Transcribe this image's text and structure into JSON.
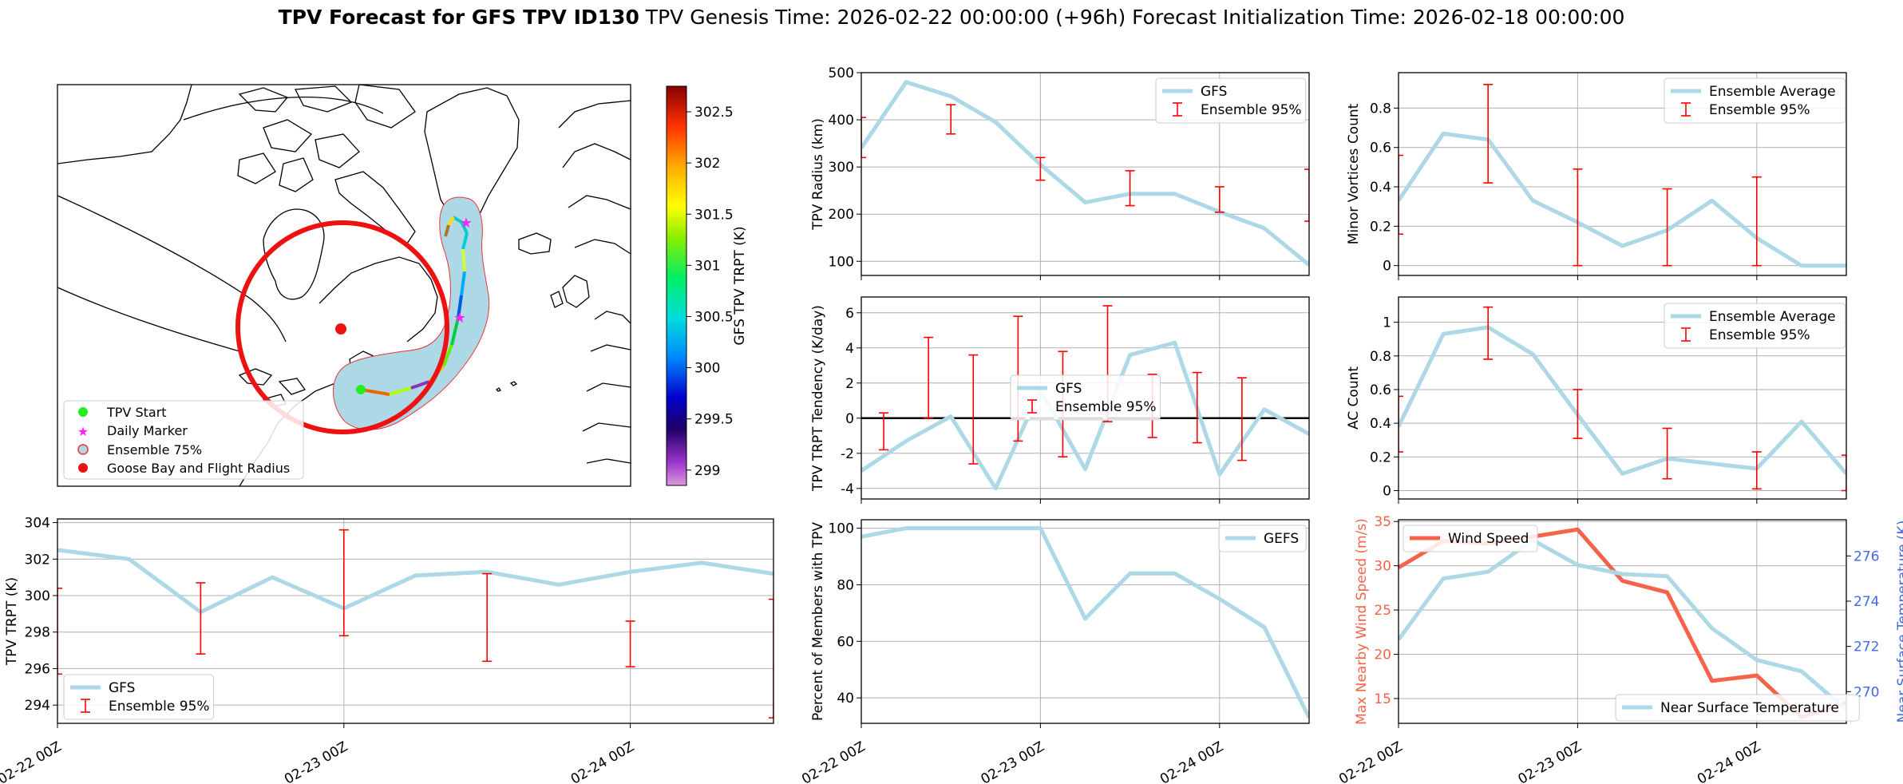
{
  "figure": {
    "title_bold": "TPV Forecast for GFS TPV ID130",
    "title_rest": "TPV Genesis Time: 2026-02-22 00:00:00 (+96h)   Forecast Initialization Time: 2026-02-18 00:00:00"
  },
  "colors": {
    "gfs_line": "#add8e6",
    "ensemble_err": "#ff0000",
    "wind": "#f4634a",
    "temp_axis": "#4169e1",
    "track_fill": "#add8e6",
    "circle": "#ee1111"
  },
  "chart_data": [
    {
      "id": "map",
      "type": "scatter",
      "colorbar": {
        "label": "GFS TPV TRPT (K)",
        "ticks": [
          302.5,
          302.0,
          301.5,
          301.0,
          300.5,
          300.0,
          299.5,
          299.0
        ],
        "range": [
          298.85,
          302.75
        ]
      },
      "legend": [
        "TPV Start",
        "Daily Marker",
        "Ensemble 75%",
        "Goose Bay and Flight Radius"
      ],
      "legend_position": "lower-left"
    },
    {
      "id": "radius",
      "type": "line",
      "ylabel": "TPV Radius (km)",
      "ylim": [
        70,
        500
      ],
      "yticks": [
        100,
        200,
        300,
        400,
        500
      ],
      "x": [
        0,
        0.25,
        0.5,
        0.75,
        1.0,
        1.25,
        1.5,
        1.75,
        2.0,
        2.25,
        2.5
      ],
      "series": [
        {
          "name": "GFS",
          "values": [
            340,
            480,
            450,
            395,
            305,
            225,
            243,
            243,
            205,
            170,
            92
          ]
        }
      ],
      "errorbars": [
        {
          "x": 0.0,
          "low": 320,
          "high": 405
        },
        {
          "x": 0.5,
          "low": 370,
          "high": 432
        },
        {
          "x": 1.0,
          "low": 272,
          "high": 320
        },
        {
          "x": 1.5,
          "low": 218,
          "high": 292
        },
        {
          "x": 2.0,
          "low": 204,
          "high": 258
        },
        {
          "x": 2.5,
          "low": 185,
          "high": 295
        }
      ],
      "legend": [
        "GFS",
        "Ensemble 95%"
      ],
      "legend_position": "top-right"
    },
    {
      "id": "minor",
      "type": "line",
      "ylabel": "Minor Vortices Count",
      "ylim": [
        -0.05,
        0.98
      ],
      "yticks": [
        0.0,
        0.2,
        0.4,
        0.6,
        0.8
      ],
      "x": [
        0,
        0.25,
        0.5,
        0.75,
        1.0,
        1.25,
        1.5,
        1.75,
        2.0,
        2.25,
        2.5
      ],
      "series": [
        {
          "name": "Ensemble Average",
          "values": [
            0.33,
            0.67,
            0.64,
            0.33,
            0.22,
            0.1,
            0.18,
            0.33,
            0.14,
            0.0,
            0.0
          ]
        }
      ],
      "errorbars": [
        {
          "x": 0.0,
          "low": 0.16,
          "high": 0.56
        },
        {
          "x": 0.5,
          "low": 0.42,
          "high": 0.92
        },
        {
          "x": 1.0,
          "low": 0.0,
          "high": 0.49
        },
        {
          "x": 1.5,
          "low": 0.0,
          "high": 0.39
        },
        {
          "x": 2.0,
          "low": 0.0,
          "high": 0.45
        }
      ],
      "legend": [
        "Ensemble Average",
        "Ensemble 95%"
      ],
      "legend_position": "top-right"
    },
    {
      "id": "tendency",
      "type": "line",
      "ylabel": "TPV TRPT Tendency (K/day)",
      "ylim": [
        -4.6,
        6.9
      ],
      "yticks": [
        -4,
        -2,
        0,
        2,
        4,
        6
      ],
      "x": [
        0,
        0.25,
        0.5,
        0.75,
        1.0,
        1.25,
        1.5,
        1.75,
        2.0,
        2.25,
        2.5
      ],
      "series": [
        {
          "name": "GFS",
          "values": [
            -3.0,
            -1.3,
            0.1,
            -4.0,
            1.6,
            -2.9,
            3.6,
            4.3,
            -3.2,
            0.5,
            -0.9
          ]
        }
      ],
      "errorbars": [
        {
          "x": 0.125,
          "low": -1.8,
          "high": 0.3
        },
        {
          "x": 0.375,
          "low": 0.0,
          "high": 4.6
        },
        {
          "x": 0.625,
          "low": -2.6,
          "high": 3.6
        },
        {
          "x": 0.875,
          "low": -1.3,
          "high": 5.8
        },
        {
          "x": 1.125,
          "low": -2.2,
          "high": 3.8
        },
        {
          "x": 1.375,
          "low": -0.2,
          "high": 6.4
        },
        {
          "x": 1.625,
          "low": -1.1,
          "high": 2.5
        },
        {
          "x": 1.875,
          "low": -1.4,
          "high": 2.6
        },
        {
          "x": 2.125,
          "low": -2.4,
          "high": 2.3
        }
      ],
      "legend": [
        "GFS",
        "Ensemble 95%"
      ],
      "legend_position": "center"
    },
    {
      "id": "ac",
      "type": "line",
      "ylabel": "AC Count",
      "ylim": [
        -0.05,
        1.15
      ],
      "yticks": [
        0.0,
        0.2,
        0.4,
        0.6,
        0.8,
        1.0
      ],
      "x": [
        0,
        0.25,
        0.5,
        0.75,
        1.0,
        1.25,
        1.5,
        1.75,
        2.0,
        2.25,
        2.5
      ],
      "series": [
        {
          "name": "Ensemble Average",
          "values": [
            0.38,
            0.93,
            0.97,
            0.81,
            0.45,
            0.1,
            0.19,
            0.16,
            0.13,
            0.41,
            0.1
          ]
        }
      ],
      "errorbars": [
        {
          "x": 0.0,
          "low": 0.23,
          "high": 0.56
        },
        {
          "x": 0.5,
          "low": 0.78,
          "high": 1.09
        },
        {
          "x": 1.0,
          "low": 0.31,
          "high": 0.6
        },
        {
          "x": 1.5,
          "low": 0.07,
          "high": 0.37
        },
        {
          "x": 2.0,
          "low": 0.01,
          "high": 0.23
        },
        {
          "x": 2.5,
          "low": 0.0,
          "high": 0.21
        }
      ],
      "legend": [
        "Ensemble Average",
        "Ensemble 95%"
      ],
      "legend_position": "top-right"
    },
    {
      "id": "trpt",
      "type": "line",
      "ylabel": "TPV TRPT (K)",
      "ylim": [
        293.0,
        304.2
      ],
      "yticks": [
        294,
        296,
        298,
        300,
        302,
        304
      ],
      "xticks": [
        "02-22 00Z",
        "02-23 00Z",
        "02-24 00Z"
      ],
      "x": [
        0,
        0.25,
        0.5,
        0.75,
        1.0,
        1.25,
        1.5,
        1.75,
        2.0,
        2.25,
        2.5
      ],
      "series": [
        {
          "name": "GFS",
          "values": [
            302.5,
            302.0,
            299.1,
            301.0,
            299.3,
            301.1,
            301.3,
            300.6,
            301.3,
            301.8,
            301.2
          ]
        }
      ],
      "errorbars": [
        {
          "x": 0.0,
          "low": 295.7,
          "high": 300.4
        },
        {
          "x": 0.5,
          "low": 296.8,
          "high": 300.7
        },
        {
          "x": 1.0,
          "low": 297.8,
          "high": 303.6
        },
        {
          "x": 1.5,
          "low": 296.4,
          "high": 301.2
        },
        {
          "x": 2.0,
          "low": 296.1,
          "high": 298.6
        },
        {
          "x": 2.5,
          "low": 293.3,
          "high": 299.8
        }
      ],
      "legend": [
        "GFS",
        "Ensemble 95%"
      ],
      "legend_position": "lower-left"
    },
    {
      "id": "members",
      "type": "line",
      "ylabel": "Percent of Members with TPV",
      "ylim": [
        31,
        103
      ],
      "yticks": [
        40,
        60,
        80,
        100
      ],
      "xticks": [
        "02-22 00Z",
        "02-23 00Z",
        "02-24 00Z"
      ],
      "x": [
        0,
        0.25,
        0.5,
        0.75,
        1.0,
        1.25,
        1.5,
        1.75,
        2.0,
        2.25,
        2.5
      ],
      "series": [
        {
          "name": "GEFS",
          "values": [
            97,
            100,
            100,
            100,
            100,
            68,
            84,
            84,
            75,
            65,
            33
          ]
        }
      ],
      "legend": [
        "GEFS"
      ],
      "legend_position": "top-right"
    },
    {
      "id": "wind_temp",
      "type": "line",
      "ylabel": "Max Nearby Wind Speed (m/s)",
      "ylabel_right": "Near Surface Temperature (K)",
      "ylim": [
        12.2,
        35.2
      ],
      "yticks": [
        15,
        20,
        25,
        30,
        35
      ],
      "ylim_right": [
        268.6,
        277.6
      ],
      "yticks_right": [
        270,
        272,
        274,
        276
      ],
      "xticks": [
        "02-22 00Z",
        "02-23 00Z",
        "02-24 00Z"
      ],
      "x": [
        0,
        0.25,
        0.5,
        0.75,
        1.0,
        1.25,
        1.5,
        1.75,
        2.0,
        2.25,
        2.5
      ],
      "series": [
        {
          "name": "Wind Speed",
          "axis": "left",
          "values": [
            29.8,
            32.8,
            32.5,
            33.3,
            34.1,
            28.3,
            27.0,
            17.0,
            17.6,
            12.9,
            14.5
          ]
        },
        {
          "name": "Near Surface Temperature",
          "axis": "right",
          "values": [
            272.3,
            275.0,
            275.3,
            276.7,
            275.6,
            275.2,
            275.1,
            272.8,
            271.4,
            270.9,
            269.2
          ]
        }
      ],
      "legend": [
        "Wind Speed",
        "Near Surface Temperature"
      ],
      "legend_position": "top-left / bottom-right"
    }
  ]
}
